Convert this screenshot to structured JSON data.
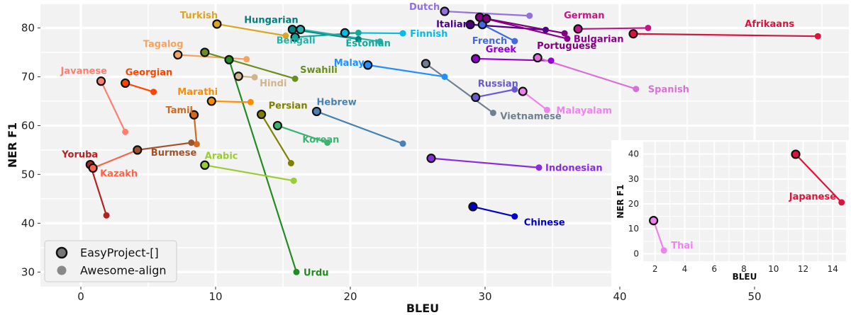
{
  "chart_data": [
    {
      "type": "scatter",
      "xlabel": "BLEU",
      "ylabel": "NER F1",
      "xlim": [
        -3,
        57
      ],
      "ylim": [
        27,
        85
      ],
      "xticks": [
        0,
        10,
        20,
        30,
        40,
        50
      ],
      "yticks": [
        30,
        40,
        50,
        60,
        70,
        80
      ],
      "grid": true,
      "legend": {
        "placement": "bottom-left",
        "entries": [
          {
            "label": "EasyProject-[]",
            "style": "outlined"
          },
          {
            "label": "Awesome-align",
            "style": "plain"
          }
        ]
      },
      "languages": [
        {
          "name": "Turkish",
          "color": "#DAA520",
          "easy": [
            10.1,
            80.8
          ],
          "awesome": [
            15.2,
            78.4
          ]
        },
        {
          "name": "Hungarian",
          "color": "#008080",
          "easy": [
            15.7,
            79.7
          ],
          "awesome": [
            20.6,
            77.7
          ]
        },
        {
          "name": "Bengali",
          "color": "#20B2AA",
          "easy": [
            16.3,
            79.7
          ],
          "awesome": [
            22.2,
            77.2
          ]
        },
        {
          "name": "Finnish",
          "color": "#00BFE7",
          "easy": [
            19.6,
            79.0
          ],
          "awesome": [
            23.9,
            78.9
          ]
        },
        {
          "name": "Estonian",
          "color": "#12A89A",
          "easy": [
            15.9,
            78.1
          ],
          "awesome": [
            20.6,
            79.0
          ]
        },
        {
          "name": "Dutch",
          "color": "#9370DB",
          "easy": [
            27.0,
            83.4
          ],
          "awesome": [
            33.3,
            82.5
          ]
        },
        {
          "name": "Italian",
          "color": "#4B0082",
          "easy": [
            28.9,
            80.7
          ],
          "awesome": [
            34.5,
            79.6
          ]
        },
        {
          "name": "French",
          "color": "#4169E1",
          "easy": [
            29.8,
            80.7
          ],
          "awesome": [
            32.2,
            77.3
          ]
        },
        {
          "name": "Bulgarian",
          "color": "#8B008B",
          "easy": [
            29.6,
            82.2
          ],
          "awesome": [
            36.1,
            77.8
          ]
        },
        {
          "name": "Portuguese",
          "color": "#800080",
          "easy": [
            30.1,
            81.9
          ],
          "awesome": [
            35.9,
            78.9
          ]
        },
        {
          "name": "German",
          "color": "#C71585",
          "easy": [
            36.9,
            79.8
          ],
          "awesome": [
            42.1,
            80.0
          ]
        },
        {
          "name": "Afrikaans",
          "color": "#DC143C",
          "easy": [
            41.0,
            78.8
          ],
          "awesome": [
            54.7,
            78.3
          ]
        },
        {
          "name": "Greek",
          "color": "#9400D3",
          "easy": [
            29.3,
            73.7
          ],
          "awesome": [
            34.9,
            73.3
          ]
        },
        {
          "name": "Spanish",
          "color": "#DA70D6",
          "easy": [
            33.9,
            73.9
          ],
          "awesome": [
            41.2,
            67.5
          ]
        },
        {
          "name": "Tagalog",
          "color": "#F4A460",
          "easy": [
            7.2,
            74.5
          ],
          "awesome": [
            12.3,
            73.6
          ]
        },
        {
          "name": "Swahili",
          "color": "#6B8E23",
          "easy": [
            9.2,
            75.0
          ],
          "awesome": [
            15.9,
            69.6
          ]
        },
        {
          "name": "Hindi",
          "color": "#D2B48C",
          "easy": [
            11.7,
            70.1
          ],
          "awesome": [
            12.9,
            69.9
          ]
        },
        {
          "name": "Urdu",
          "color": "#228B22",
          "easy": [
            11.0,
            73.5
          ],
          "awesome": [
            16.0,
            30.0
          ]
        },
        {
          "name": "Javanese",
          "color": "#FA8072",
          "easy": [
            1.5,
            69.1
          ],
          "awesome": [
            3.3,
            58.7
          ]
        },
        {
          "name": "Georgian",
          "color": "#FF4500",
          "easy": [
            3.3,
            68.7
          ],
          "awesome": [
            5.4,
            66.9
          ]
        },
        {
          "name": "Marathi",
          "color": "#FF8C00",
          "easy": [
            9.7,
            65.0
          ],
          "awesome": [
            12.6,
            64.8
          ]
        },
        {
          "name": "Tamil",
          "color": "#D2691E",
          "easy": [
            8.4,
            62.2
          ],
          "awesome": [
            8.6,
            56.2
          ]
        },
        {
          "name": "Burmese",
          "color": "#A0522D",
          "easy": [
            4.2,
            55.0
          ],
          "awesome": [
            8.2,
            56.5
          ]
        },
        {
          "name": "Yoruba",
          "color": "#B22222",
          "easy": [
            0.7,
            52.0
          ],
          "awesome": [
            1.9,
            41.6
          ]
        },
        {
          "name": "Kazakh",
          "color": "#FF6347",
          "easy": [
            0.9,
            51.3
          ],
          "awesome": [
            4.2,
            55.0
          ]
        },
        {
          "name": "Persian",
          "color": "#808000",
          "easy": [
            13.4,
            62.3
          ],
          "awesome": [
            15.6,
            52.3
          ]
        },
        {
          "name": "Korean",
          "color": "#3CB371",
          "easy": [
            14.6,
            60.0
          ],
          "awesome": [
            18.3,
            56.5
          ]
        },
        {
          "name": "Arabic",
          "color": "#9ACD32",
          "easy": [
            9.2,
            51.9
          ],
          "awesome": [
            15.8,
            48.7
          ]
        },
        {
          "name": "Malay",
          "color": "#1E90FF",
          "easy": [
            21.3,
            72.4
          ],
          "awesome": [
            27.0,
            70.0
          ]
        },
        {
          "name": "Hebrew",
          "color": "#4682B4",
          "easy": [
            17.5,
            62.9
          ],
          "awesome": [
            23.9,
            56.3
          ]
        },
        {
          "name": "Russian",
          "color": "#6A5ACD",
          "easy": [
            29.3,
            65.8
          ],
          "awesome": [
            32.2,
            67.4
          ]
        },
        {
          "name": "Vietnamese",
          "color": "#708090",
          "easy": [
            25.6,
            72.7
          ],
          "awesome": [
            30.6,
            62.6
          ]
        },
        {
          "name": "Malayalam",
          "color": "#EE82EE",
          "easy": [
            32.8,
            67.0
          ],
          "awesome": [
            34.6,
            63.2
          ]
        },
        {
          "name": "Indonesian",
          "color": "#8A2BE2",
          "easy": [
            26.0,
            53.3
          ],
          "awesome": [
            34.0,
            51.4
          ]
        },
        {
          "name": "Chinese",
          "color": "#0000CD",
          "easy": [
            29.1,
            43.4
          ],
          "awesome": [
            32.2,
            41.4
          ]
        }
      ]
    },
    {
      "type": "scatter",
      "xlabel": "BLEU",
      "ylabel": "NER F1",
      "xlim": [
        1.2,
        14.9
      ],
      "ylim": [
        -3,
        45
      ],
      "xticks": [
        2,
        4,
        6,
        8,
        10,
        12,
        14
      ],
      "yticks": [
        0,
        10,
        20,
        30,
        40
      ],
      "grid": true,
      "languages": [
        {
          "name": "Thai",
          "color": "#EE82EE",
          "easy": [
            1.9,
            13.3
          ],
          "awesome": [
            2.6,
            1.3
          ]
        },
        {
          "name": "Japanese",
          "color": "#DC143C",
          "easy": [
            11.5,
            39.9
          ],
          "awesome": [
            14.6,
            20.6
          ]
        }
      ]
    }
  ]
}
